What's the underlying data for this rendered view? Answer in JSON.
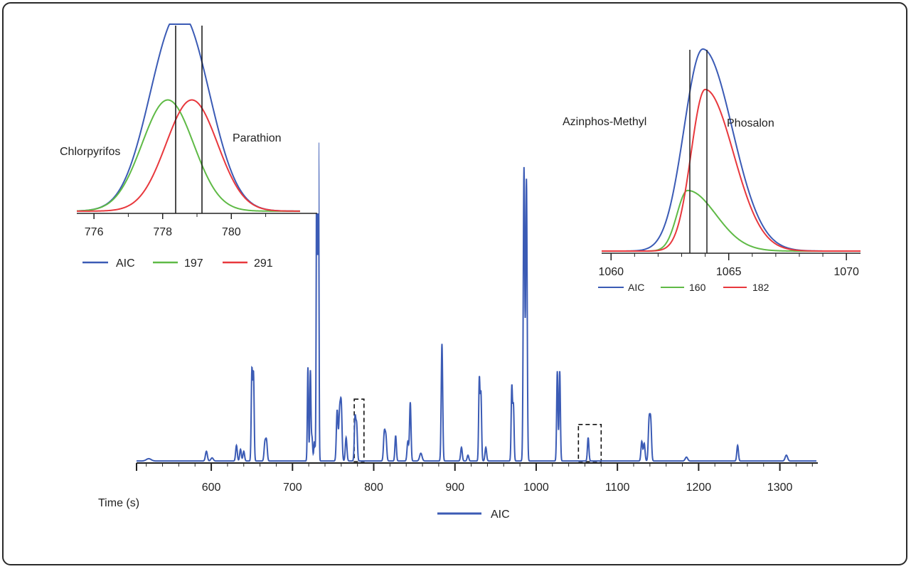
{
  "chart_data": [
    {
      "id": "main",
      "type": "line",
      "xlabel": "Time (s)",
      "xlim": [
        508,
        1345
      ],
      "ylim": [
        0,
        100
      ],
      "x_ticks": [
        600,
        700,
        800,
        900,
        1000,
        1100,
        1200,
        1300
      ],
      "legend": {
        "placement": "bottom-center",
        "entries": [
          {
            "label": "AIC",
            "color": "#3b5bb5"
          }
        ]
      },
      "series": [
        {
          "name": "AIC",
          "color": "#3b5bb5",
          "peaks": [
            [
              523,
              0.6,
              3
            ],
            [
              594,
              2.5,
              1.2
            ],
            [
              601,
              0.8,
              1.5
            ],
            [
              631,
              4,
              1
            ],
            [
              636,
              3,
              1
            ],
            [
              640,
              2.5,
              1
            ],
            [
              650,
              23,
              0.8
            ],
            [
              652,
              22,
              0.8
            ],
            [
              666,
              4.5,
              1
            ],
            [
              668,
              5,
              1
            ],
            [
              719,
              24,
              0.7
            ],
            [
              722,
              23,
              0.7
            ],
            [
              724,
              6,
              0.8
            ],
            [
              727,
              5,
              0.8
            ],
            [
              730,
              91,
              0.7
            ],
            [
              732,
              80,
              0.6
            ],
            [
              755,
              13,
              1
            ],
            [
              758,
              12,
              1
            ],
            [
              760,
              14,
              1
            ],
            [
              766,
              6,
              1
            ],
            [
              777,
              11,
              0.9
            ],
            [
              779,
              9,
              0.9
            ],
            [
              813,
              7,
              1
            ],
            [
              815,
              6,
              1
            ],
            [
              827,
              6.5,
              0.9
            ],
            [
              842,
              5,
              1
            ],
            [
              845,
              15,
              0.9
            ],
            [
              858,
              2,
              1.5
            ],
            [
              884,
              30,
              0.9
            ],
            [
              908,
              3.5,
              1
            ],
            [
              916,
              1.5,
              1
            ],
            [
              930,
              21,
              0.8
            ],
            [
              932,
              17,
              0.8
            ],
            [
              938,
              3.5,
              1
            ],
            [
              970,
              19,
              0.8
            ],
            [
              972,
              14,
              0.8
            ],
            [
              985,
              75,
              0.9
            ],
            [
              988,
              72,
              0.9
            ],
            [
              1026,
              23,
              0.8
            ],
            [
              1029,
              23,
              0.8
            ],
            [
              1064,
              6,
              0.9
            ],
            [
              1130,
              5,
              1
            ],
            [
              1133,
              4.5,
              1
            ],
            [
              1139,
              10,
              1
            ],
            [
              1141,
              10,
              1
            ],
            [
              1185,
              1,
              1.5
            ],
            [
              1248,
              4,
              1
            ],
            [
              1308,
              1.5,
              1.5
            ]
          ]
        }
      ],
      "zoom_boxes": [
        {
          "x": [
            776,
            788
          ],
          "y": [
            0,
            16
          ]
        },
        {
          "x": [
            1052,
            1080
          ],
          "y": [
            0,
            9.5
          ]
        }
      ]
    },
    {
      "id": "inset-left",
      "type": "line",
      "xlim": [
        775.5,
        782.5
      ],
      "ylim": [
        0,
        100
      ],
      "x_ticks": [
        776,
        778,
        780
      ],
      "legend": {
        "placement": "bottom",
        "entries": [
          {
            "label": "AIC",
            "color": "#3b5bb5"
          },
          {
            "label": "197",
            "color": "#5fba46"
          },
          {
            "label": "291",
            "color": "#e8383d"
          }
        ]
      },
      "series": [
        {
          "name": "AIC",
          "color": "#3b5bb5",
          "peaks": [
            [
              778.15,
              59,
              0.75
            ],
            [
              778.85,
              59,
              0.75
            ]
          ]
        },
        {
          "name": "197",
          "color": "#5fba46",
          "peaks": [
            [
              778.15,
              59,
              0.75
            ]
          ]
        },
        {
          "name": "291",
          "color": "#e8383d",
          "peaks": [
            [
              778.85,
              59,
              0.75
            ]
          ]
        }
      ],
      "markers": [
        778.15,
        778.85
      ],
      "annotations": [
        {
          "text": "Chlorpyrifos"
        },
        {
          "text": "Parathion"
        }
      ]
    },
    {
      "id": "inset-right",
      "type": "line",
      "xlim": [
        1059.6,
        1070.6
      ],
      "ylim": [
        0,
        100
      ],
      "x_ticks": [
        1060,
        1065,
        1070
      ],
      "legend": {
        "placement": "bottom",
        "entries": [
          {
            "label": "AIC",
            "color": "#3b5bb5"
          },
          {
            "label": "160",
            "color": "#5fba46"
          },
          {
            "label": "182",
            "color": "#e8383d"
          }
        ]
      },
      "series": [
        {
          "name": "AIC",
          "color": "#3b5bb5",
          "tailed": [
            [
              1063.9,
              100,
              0.8,
              1.25
            ]
          ]
        },
        {
          "name": "160",
          "color": "#5fba46",
          "tailed": [
            [
              1063.25,
              30,
              0.45,
              1.2
            ]
          ]
        },
        {
          "name": "182",
          "color": "#e8383d",
          "tailed": [
            [
              1064.0,
              80,
              0.6,
              1.2
            ]
          ]
        }
      ],
      "markers": [
        1063.15,
        1063.9
      ],
      "annotations": [
        {
          "text": "Azinphos-Methyl"
        },
        {
          "text": "Phosalon"
        }
      ]
    }
  ]
}
